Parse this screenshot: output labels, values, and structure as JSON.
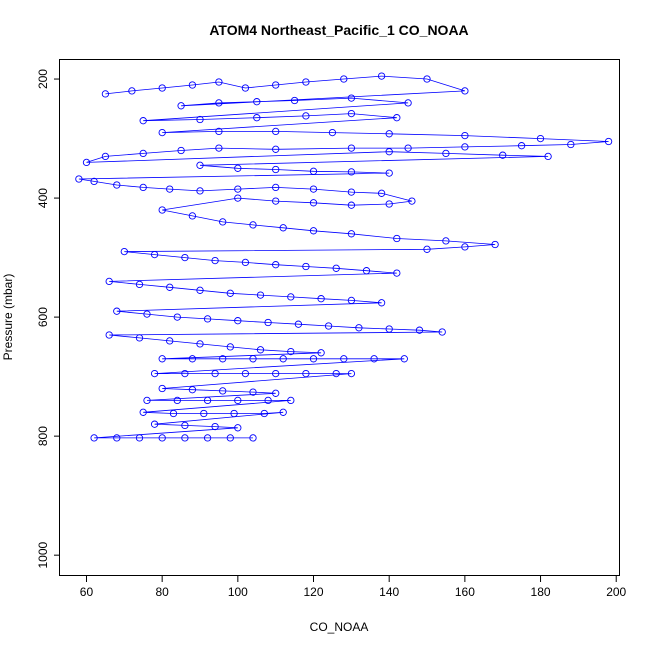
{
  "chart_data": {
    "type": "scatter",
    "title": "ATOM4 Northeast_Pacific_1 CO_NOAA",
    "xlabel": "CO_NOAA",
    "ylabel": "Pressure (mbar)",
    "xlim": [
      53,
      201
    ],
    "ylim": [
      1035,
      168
    ],
    "y_reversed": true,
    "x_ticks": [
      60,
      80,
      100,
      120,
      140,
      160,
      180,
      200
    ],
    "y_ticks": [
      200,
      400,
      600,
      800,
      1000
    ],
    "grid": false,
    "legend": "none",
    "colors": {
      "series": "#0000ff",
      "frame": "#000000"
    },
    "series": [
      {
        "style": "points-and-lines",
        "points": [
          [
            65,
            225
          ],
          [
            72,
            220
          ],
          [
            80,
            215
          ],
          [
            88,
            210
          ],
          [
            95,
            205
          ],
          [
            102,
            215
          ],
          [
            110,
            210
          ],
          [
            118,
            205
          ],
          [
            128,
            200
          ],
          [
            138,
            195
          ],
          [
            150,
            200
          ],
          [
            160,
            220
          ],
          [
            85,
            245
          ],
          [
            95,
            240
          ],
          [
            105,
            238
          ],
          [
            115,
            236
          ],
          [
            130,
            232
          ],
          [
            145,
            240
          ],
          [
            75,
            270
          ],
          [
            90,
            268
          ],
          [
            105,
            265
          ],
          [
            118,
            262
          ],
          [
            130,
            258
          ],
          [
            142,
            265
          ],
          [
            80,
            290
          ],
          [
            95,
            288
          ],
          [
            110,
            288
          ],
          [
            125,
            290
          ],
          [
            140,
            292
          ],
          [
            160,
            295
          ],
          [
            180,
            300
          ],
          [
            198,
            305
          ],
          [
            188,
            310
          ],
          [
            175,
            312
          ],
          [
            160,
            314
          ],
          [
            145,
            316
          ],
          [
            130,
            316
          ],
          [
            110,
            318
          ],
          [
            95,
            316
          ],
          [
            85,
            320
          ],
          [
            75,
            325
          ],
          [
            65,
            330
          ],
          [
            60,
            340
          ],
          [
            140,
            322
          ],
          [
            155,
            325
          ],
          [
            170,
            328
          ],
          [
            182,
            330
          ],
          [
            90,
            345
          ],
          [
            100,
            350
          ],
          [
            110,
            352
          ],
          [
            120,
            355
          ],
          [
            130,
            356
          ],
          [
            140,
            358
          ],
          [
            58,
            368
          ],
          [
            62,
            372
          ],
          [
            68,
            378
          ],
          [
            75,
            382
          ],
          [
            82,
            385
          ],
          [
            90,
            388
          ],
          [
            100,
            385
          ],
          [
            110,
            382
          ],
          [
            120,
            385
          ],
          [
            130,
            390
          ],
          [
            138,
            392
          ],
          [
            146,
            405
          ],
          [
            140,
            410
          ],
          [
            130,
            412
          ],
          [
            120,
            408
          ],
          [
            110,
            405
          ],
          [
            100,
            400
          ],
          [
            80,
            420
          ],
          [
            88,
            430
          ],
          [
            96,
            440
          ],
          [
            104,
            445
          ],
          [
            112,
            450
          ],
          [
            120,
            455
          ],
          [
            130,
            460
          ],
          [
            142,
            468
          ],
          [
            155,
            472
          ],
          [
            168,
            478
          ],
          [
            160,
            482
          ],
          [
            150,
            486
          ],
          [
            70,
            490
          ],
          [
            78,
            495
          ],
          [
            86,
            500
          ],
          [
            94,
            505
          ],
          [
            102,
            508
          ],
          [
            110,
            512
          ],
          [
            118,
            515
          ],
          [
            126,
            518
          ],
          [
            134,
            522
          ],
          [
            142,
            526
          ],
          [
            66,
            540
          ],
          [
            74,
            545
          ],
          [
            82,
            550
          ],
          [
            90,
            555
          ],
          [
            98,
            560
          ],
          [
            106,
            563
          ],
          [
            114,
            566
          ],
          [
            122,
            569
          ],
          [
            130,
            572
          ],
          [
            138,
            576
          ],
          [
            68,
            590
          ],
          [
            76,
            595
          ],
          [
            84,
            600
          ],
          [
            92,
            603
          ],
          [
            100,
            606
          ],
          [
            108,
            609
          ],
          [
            116,
            612
          ],
          [
            124,
            615
          ],
          [
            132,
            618
          ],
          [
            140,
            620
          ],
          [
            148,
            622
          ],
          [
            154,
            625
          ],
          [
            66,
            630
          ],
          [
            74,
            635
          ],
          [
            82,
            640
          ],
          [
            90,
            645
          ],
          [
            98,
            650
          ],
          [
            106,
            655
          ],
          [
            114,
            658
          ],
          [
            122,
            660
          ],
          [
            80,
            670
          ],
          [
            88,
            670
          ],
          [
            96,
            670
          ],
          [
            104,
            670
          ],
          [
            112,
            670
          ],
          [
            120,
            670
          ],
          [
            128,
            670
          ],
          [
            136,
            670
          ],
          [
            144,
            670
          ],
          [
            78,
            695
          ],
          [
            86,
            695
          ],
          [
            94,
            695
          ],
          [
            102,
            695
          ],
          [
            110,
            695
          ],
          [
            118,
            695
          ],
          [
            126,
            695
          ],
          [
            130,
            695
          ],
          [
            80,
            720
          ],
          [
            88,
            722
          ],
          [
            96,
            724
          ],
          [
            104,
            726
          ],
          [
            110,
            728
          ],
          [
            76,
            740
          ],
          [
            84,
            740
          ],
          [
            92,
            740
          ],
          [
            100,
            740
          ],
          [
            108,
            740
          ],
          [
            114,
            740
          ],
          [
            75,
            760
          ],
          [
            83,
            762
          ],
          [
            91,
            762
          ],
          [
            99,
            762
          ],
          [
            107,
            762
          ],
          [
            112,
            760
          ],
          [
            78,
            780
          ],
          [
            86,
            782
          ],
          [
            94,
            784
          ],
          [
            100,
            786
          ],
          [
            62,
            803
          ],
          [
            68,
            803
          ],
          [
            74,
            803
          ],
          [
            80,
            803
          ],
          [
            86,
            803
          ],
          [
            92,
            803
          ],
          [
            98,
            803
          ],
          [
            104,
            803
          ]
        ]
      }
    ]
  }
}
